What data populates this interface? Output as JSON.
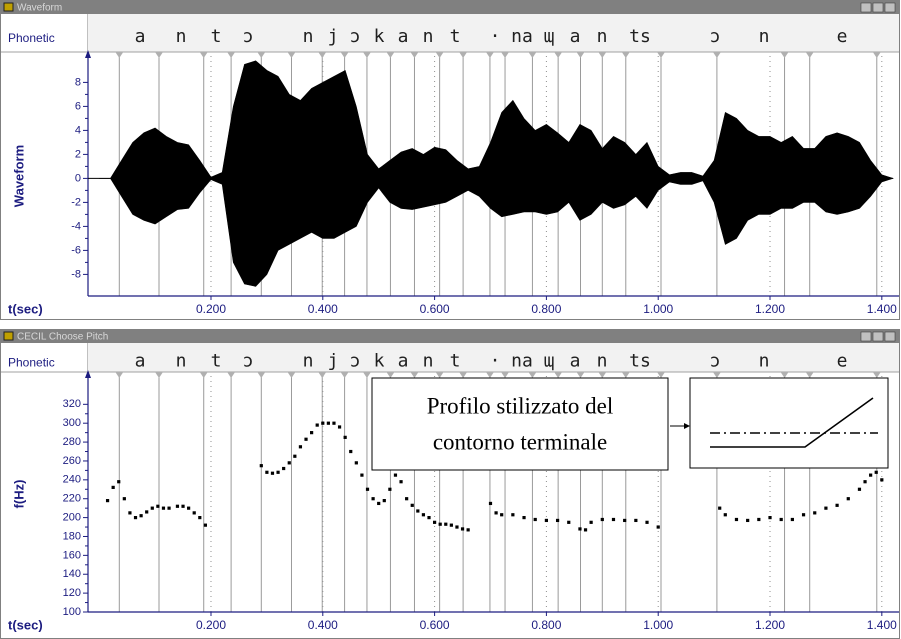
{
  "chart_data": [
    {
      "type": "area",
      "window_title": "Waveform",
      "phonetic_header": "Phonetic",
      "phones": [
        "a",
        "n",
        "t",
        "ɔ",
        "n",
        "j",
        "ɔ",
        "k",
        "a",
        "n",
        "t",
        "·",
        "na",
        "ɰ",
        "a",
        "n",
        "ts",
        "ɔ",
        "n",
        "e"
      ],
      "boundaries": [
        0.036,
        0.107,
        0.187,
        0.236,
        0.29,
        0.344,
        0.399,
        0.439,
        0.479,
        0.521,
        0.564,
        0.609,
        0.651,
        0.699,
        0.726,
        0.775,
        0.821,
        0.861,
        0.9,
        0.942,
        1.005,
        1.105,
        1.226,
        1.271,
        1.391
      ],
      "ylabel": "Waveform",
      "xlabel": "t(sec)",
      "x": [
        0,
        0.02,
        0.04,
        0.06,
        0.08,
        0.1,
        0.12,
        0.14,
        0.16,
        0.18,
        0.2,
        0.22,
        0.24,
        0.26,
        0.28,
        0.3,
        0.32,
        0.34,
        0.36,
        0.38,
        0.4,
        0.42,
        0.44,
        0.46,
        0.48,
        0.5,
        0.52,
        0.54,
        0.56,
        0.58,
        0.6,
        0.62,
        0.64,
        0.66,
        0.68,
        0.7,
        0.72,
        0.74,
        0.76,
        0.78,
        0.8,
        0.82,
        0.84,
        0.86,
        0.88,
        0.9,
        0.92,
        0.94,
        0.96,
        0.98,
        1,
        1.02,
        1.04,
        1.06,
        1.08,
        1.1,
        1.12,
        1.14,
        1.16,
        1.18,
        1.2,
        1.22,
        1.24,
        1.26,
        1.28,
        1.3,
        1.32,
        1.34,
        1.36,
        1.38,
        1.4,
        1.42
      ],
      "series": [
        {
          "color": "#000000",
          "values": [
            0,
            0,
            1.5,
            3,
            3.8,
            4.2,
            3.5,
            3,
            2.8,
            1.5,
            0.1,
            0.5,
            6,
            9.5,
            9.8,
            9,
            8.5,
            7,
            6.5,
            7.5,
            8,
            8.5,
            9,
            6,
            2,
            0.8,
            1.5,
            2.2,
            2.5,
            2,
            2.6,
            2.4,
            1.5,
            0.8,
            1,
            3,
            5.5,
            6.5,
            5,
            4,
            4.5,
            3.8,
            3,
            4.5,
            4,
            2.5,
            3.5,
            3,
            2,
            3,
            1,
            0.3,
            0.5,
            0.5,
            0.2,
            1.5,
            5.5,
            5,
            4,
            3.5,
            3.5,
            3,
            3.5,
            2.5,
            2.5,
            3.5,
            3.8,
            3.5,
            3,
            1.5,
            0.3,
            0
          ]
        },
        {
          "color": "#000000",
          "values": [
            0,
            0,
            -1.5,
            -3,
            -3.5,
            -3.8,
            -3.2,
            -2.6,
            -2.5,
            -1.2,
            -0.1,
            -0.5,
            -7,
            -8.8,
            -9,
            -8,
            -6,
            -5.5,
            -5,
            -4.5,
            -5,
            -5,
            -4.5,
            -4,
            -2,
            -0.8,
            -2,
            -2.5,
            -2.6,
            -2.4,
            -2.2,
            -2,
            -1.5,
            -1,
            -1.5,
            -2.5,
            -3.2,
            -3,
            -2.8,
            -2.8,
            -3,
            -2.8,
            -2,
            -3.5,
            -3,
            -2,
            -2.5,
            -2.2,
            -1.5,
            -2.5,
            -1,
            -0.3,
            -0.5,
            -0.5,
            -0.2,
            -2,
            -5.5,
            -5,
            -3.5,
            -3,
            -3,
            -2.5,
            -2.5,
            -2,
            -2,
            -2.8,
            -3,
            -2.8,
            -2.5,
            -1.5,
            -0.3,
            0
          ]
        }
      ],
      "xlim": [
        -0.02,
        1.42
      ],
      "ylim": [
        -9.8,
        10.2
      ],
      "xticks": [
        {
          "value": 0.2,
          "label": "0.200"
        },
        {
          "value": 0.4,
          "label": "0.400"
        },
        {
          "value": 0.6,
          "label": "0.600"
        },
        {
          "value": 0.8,
          "label": "0.800"
        },
        {
          "value": 1,
          "label": "1.000"
        },
        {
          "value": 1.2,
          "label": "1.200"
        },
        {
          "value": 1.4,
          "label": "1.400"
        }
      ],
      "yticks": [
        -8,
        -6,
        -4,
        -2,
        0,
        2,
        4,
        6,
        8
      ],
      "grid": true
    },
    {
      "type": "scatter",
      "window_title": "CECIL Choose Pitch",
      "phonetic_header": "Phonetic",
      "phones": [
        "a",
        "n",
        "t",
        "ɔ",
        "n",
        "j",
        "ɔ",
        "k",
        "a",
        "n",
        "t",
        "·",
        "na",
        "ɰ",
        "a",
        "n",
        "ts",
        "ɔ",
        "n",
        "e"
      ],
      "boundaries": [
        0.036,
        0.107,
        0.187,
        0.236,
        0.29,
        0.344,
        0.399,
        0.439,
        0.479,
        0.521,
        0.564,
        0.609,
        0.651,
        0.699,
        0.726,
        0.775,
        0.821,
        0.861,
        0.9,
        0.942,
        1.005,
        1.105,
        1.226,
        1.271,
        1.391
      ],
      "ylabel": "f(Hz)",
      "xlabel": "t(sec)",
      "annotation": [
        "Profilo stilizzato del",
        "contorno terminale"
      ],
      "color": "#000000",
      "x": [
        0.015,
        0.025,
        0.035,
        0.045,
        0.055,
        0.065,
        0.075,
        0.085,
        0.095,
        0.105,
        0.115,
        0.125,
        0.14,
        0.15,
        0.16,
        0.17,
        0.18,
        0.19,
        0.29,
        0.3,
        0.31,
        0.32,
        0.33,
        0.34,
        0.35,
        0.36,
        0.37,
        0.38,
        0.39,
        0.4,
        0.41,
        0.42,
        0.43,
        0.44,
        0.45,
        0.46,
        0.47,
        0.48,
        0.49,
        0.5,
        0.51,
        0.52,
        0.53,
        0.54,
        0.55,
        0.56,
        0.57,
        0.58,
        0.59,
        0.6,
        0.61,
        0.62,
        0.63,
        0.64,
        0.65,
        0.66,
        0.7,
        0.71,
        0.72,
        0.74,
        0.76,
        0.78,
        0.8,
        0.82,
        0.84,
        0.86,
        0.87,
        0.88,
        0.9,
        0.92,
        0.94,
        0.96,
        0.98,
        1,
        1.11,
        1.12,
        1.14,
        1.16,
        1.18,
        1.2,
        1.22,
        1.24,
        1.26,
        1.28,
        1.3,
        1.32,
        1.34,
        1.36,
        1.37,
        1.38,
        1.39,
        1.4
      ],
      "values": [
        218,
        232,
        238,
        220,
        205,
        200,
        202,
        206,
        210,
        212,
        210,
        210,
        212,
        212,
        210,
        205,
        200,
        192,
        255,
        248,
        247,
        248,
        252,
        258,
        265,
        275,
        283,
        290,
        298,
        300,
        300,
        300,
        296,
        285,
        270,
        258,
        245,
        230,
        220,
        215,
        218,
        230,
        245,
        238,
        220,
        213,
        207,
        203,
        200,
        195,
        193,
        193,
        192,
        190,
        188,
        187,
        215,
        205,
        203,
        203,
        200,
        198,
        197,
        197,
        195,
        188,
        187,
        195,
        198,
        198,
        197,
        197,
        195,
        190,
        210,
        203,
        198,
        197,
        198,
        200,
        198,
        198,
        203,
        205,
        210,
        213,
        220,
        230,
        238,
        245,
        248,
        240
      ],
      "xlim": [
        -0.02,
        1.42
      ],
      "ylim": [
        100,
        350
      ],
      "xticks": [
        {
          "value": 0.2,
          "label": "0.200"
        },
        {
          "value": 0.4,
          "label": "0.400"
        },
        {
          "value": 0.6,
          "label": "0.600"
        },
        {
          "value": 0.8,
          "label": "0.800"
        },
        {
          "value": 1,
          "label": "1.000"
        },
        {
          "value": 1.2,
          "label": "1.200"
        },
        {
          "value": 1.4,
          "label": "1.400"
        }
      ],
      "yticks": [
        100,
        120,
        140,
        160,
        180,
        200,
        220,
        240,
        260,
        280,
        300,
        320
      ],
      "grid": true
    }
  ]
}
